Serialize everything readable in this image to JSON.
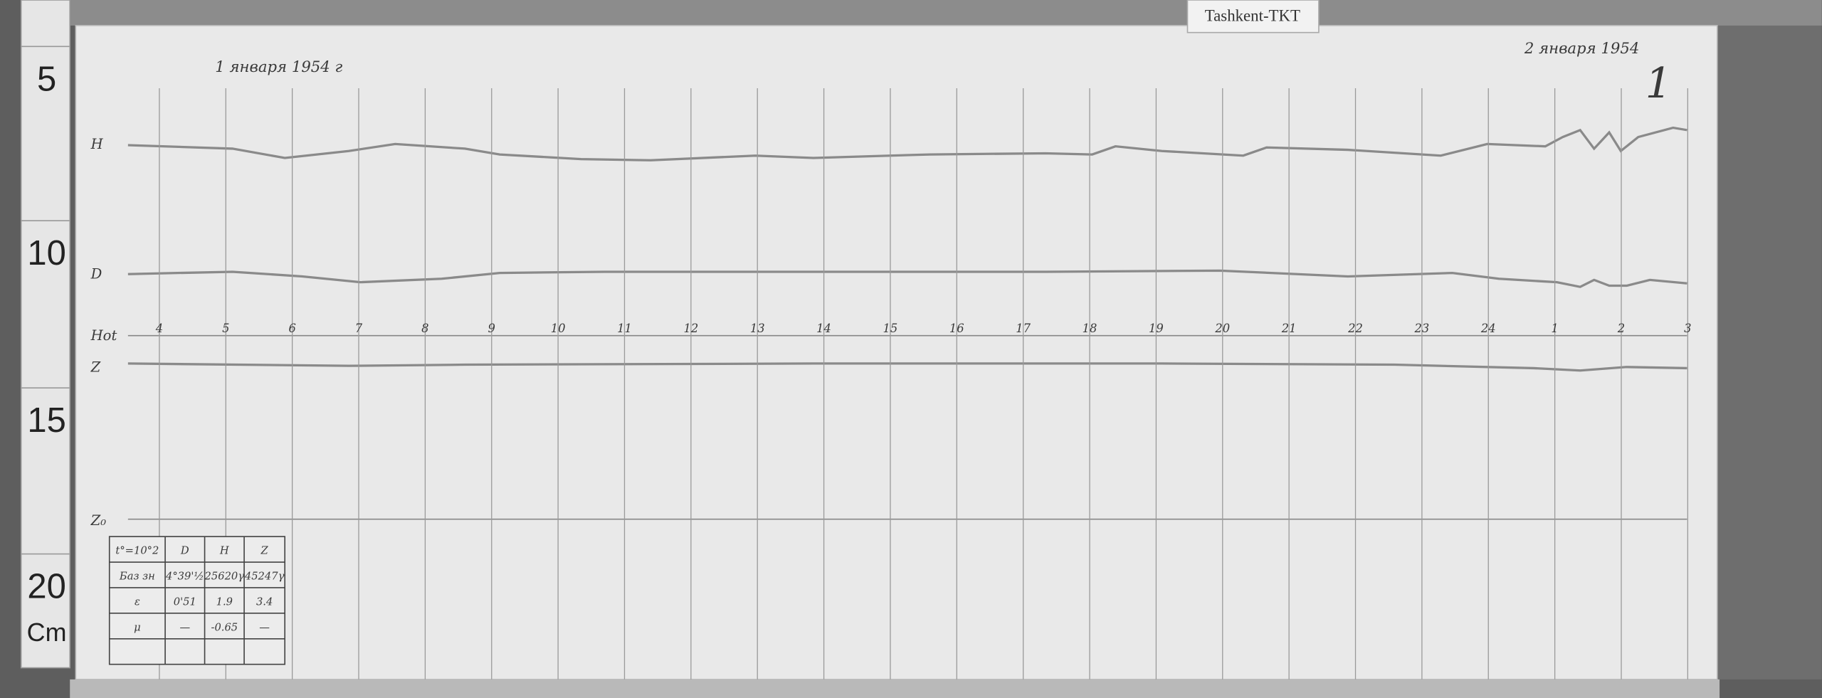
{
  "tag": "Tashkent-TKT",
  "ruler": [
    "5",
    "10",
    "15",
    "20",
    "Cm"
  ],
  "header": {
    "left_date": "1 января 1954 г",
    "right_date": "2 января 1954",
    "sheet": "1"
  },
  "trace_labels": [
    "H",
    "D",
    "Hot",
    "Z",
    "Z₀"
  ],
  "hours": [
    "4",
    "5",
    "6",
    "7",
    "8",
    "9",
    "10",
    "11",
    "12",
    "13",
    "14",
    "15",
    "16",
    "17",
    "18",
    "19",
    "20",
    "21",
    "22",
    "23",
    "24",
    "1",
    "2",
    "3"
  ],
  "table": {
    "rows": [
      [
        "t°=10°2",
        "D",
        "H",
        "Z"
      ],
      [
        "Баз зн",
        "4°39'½",
        "25620γ",
        "45247γ"
      ],
      [
        "ε",
        "0'51",
        "1.9",
        "3.4"
      ],
      [
        "μ",
        "—",
        "-0.65",
        "—"
      ]
    ]
  }
}
